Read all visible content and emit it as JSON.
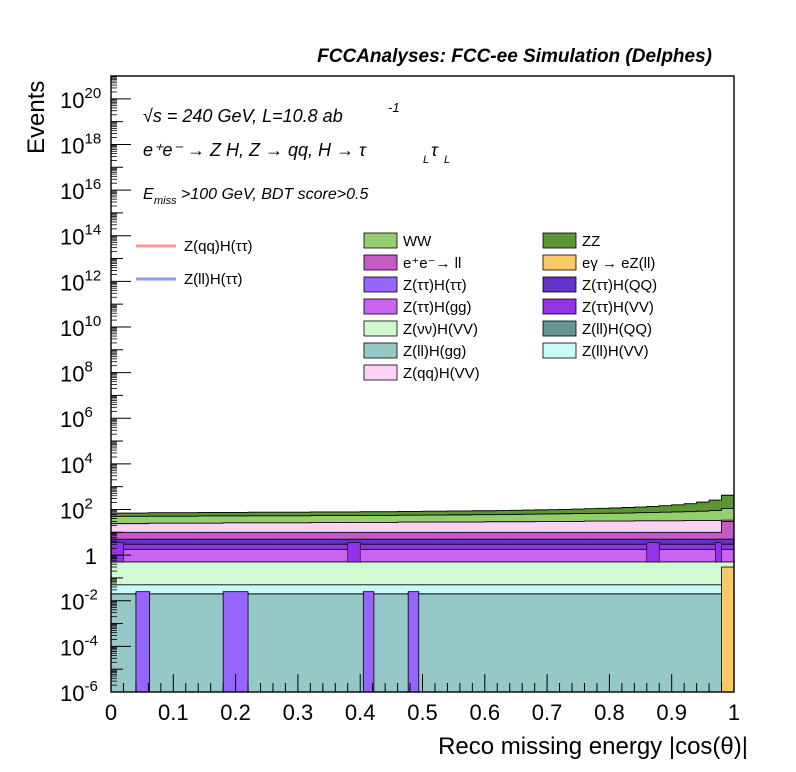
{
  "header": {
    "title": "FCCAnalyses: FCC-ee Simulation (Delphes)"
  },
  "annotations": {
    "line1_prefix": "√s",
    "line1_rest": " = 240 GeV, L=10.8 ab",
    "line1_sup": "-1",
    "line2": "e⁺e⁻ → Z H, Z → qq, H → τ",
    "line2_sub1": "L",
    "line2_tau": "τ",
    "line2_sub2": "L",
    "line3_E": "E",
    "line3_sub": "miss",
    "line3_rest": ">100 GeV, BDT score>0.5"
  },
  "chart_data": {
    "type": "area",
    "stacked": true,
    "title": "FCCAnalyses: FCC-ee Simulation (Delphes)",
    "xlabel": "Reco missing energy |cos(θ)|",
    "ylabel": "Events",
    "xlim": [
      0,
      1
    ],
    "ylim": [
      1e-06,
      1e+21
    ],
    "yscale": "log",
    "grid": false,
    "legend_position": "top",
    "x_ticks": [
      "0",
      "0.1",
      "0.2",
      "0.3",
      "0.4",
      "0.5",
      "0.6",
      "0.7",
      "0.8",
      "0.9",
      "1"
    ],
    "y_ticks": [
      {
        "base": "10",
        "exp": "-6",
        "value": 1e-06
      },
      {
        "base": "10",
        "exp": "-4",
        "value": 0.0001
      },
      {
        "base": "10",
        "exp": "-2",
        "value": 0.01
      },
      {
        "base": "1",
        "exp": "",
        "value": 1
      },
      {
        "base": "10",
        "exp": "2",
        "value": 100.0
      },
      {
        "base": "10",
        "exp": "4",
        "value": 10000.0
      },
      {
        "base": "10",
        "exp": "6",
        "value": 1000000.0
      },
      {
        "base": "10",
        "exp": "8",
        "value": 100000000.0
      },
      {
        "base": "10",
        "exp": "10",
        "value": 10000000000.0
      },
      {
        "base": "10",
        "exp": "12",
        "value": 1000000000000.0
      },
      {
        "base": "10",
        "exp": "14",
        "value": 100000000000000.0
      },
      {
        "base": "10",
        "exp": "16",
        "value": 1e+16
      },
      {
        "base": "10",
        "exp": "18",
        "value": 1e+18
      },
      {
        "base": "10",
        "exp": "20",
        "value": 1e+20
      }
    ],
    "bins": 50,
    "cumulative_layers": [
      {
        "name": "ZZ",
        "color": "#5a9632",
        "totals_approx": [
          70,
          70,
          70,
          72,
          72,
          72,
          72,
          74,
          74,
          74,
          74,
          76,
          76,
          76,
          76,
          76,
          78,
          78,
          78,
          78,
          80,
          80,
          80,
          82,
          82,
          84,
          84,
          86,
          86,
          88,
          88,
          90,
          92,
          94,
          96,
          98,
          100,
          104,
          108,
          112,
          116,
          122,
          128,
          136,
          146,
          160,
          180,
          210,
          260,
          420
        ]
      },
      {
        "name": "WW",
        "color": "#96cd6e",
        "totals_approx": [
          50,
          50,
          50,
          51,
          51,
          51,
          51,
          52,
          52,
          52,
          52,
          53,
          53,
          53,
          53,
          53,
          54,
          54,
          54,
          54,
          55,
          55,
          55,
          56,
          56,
          57,
          57,
          58,
          58,
          59,
          59,
          60,
          61,
          62,
          63,
          64,
          65,
          66,
          67,
          68,
          69,
          70,
          72,
          74,
          76,
          78,
          80,
          84,
          90,
          110
        ]
      },
      {
        "name": "Z(qq)H(VV)",
        "color": "#ffd2f5",
        "totals_approx": [
          24,
          24,
          24,
          25,
          25,
          25,
          25,
          25,
          25,
          26,
          26,
          26,
          26,
          26,
          26,
          26,
          27,
          27,
          27,
          27,
          27,
          27,
          27,
          28,
          28,
          28,
          28,
          28,
          28,
          28,
          29,
          29,
          29,
          29,
          30,
          30,
          30,
          30,
          31,
          31,
          31,
          31,
          32,
          32,
          32,
          32,
          33,
          33,
          33,
          34
        ]
      },
      {
        "name": "e⁺e⁻→ ll",
        "color": "#c85ac8",
        "totals_approx": [
          10,
          10,
          10,
          10,
          10,
          10,
          10,
          10,
          10,
          10,
          10,
          10,
          10,
          10,
          10,
          10,
          10,
          10,
          10,
          10,
          10,
          10,
          10,
          10,
          10,
          10,
          10,
          10,
          10,
          10,
          10,
          10,
          10,
          10,
          10,
          10,
          10,
          10,
          10,
          10,
          10,
          10,
          10,
          10,
          10,
          10,
          10,
          10,
          10,
          30
        ]
      },
      {
        "name": "Z(ττ)H(QQ)",
        "color": "#6432c8",
        "totals_approx": [
          5,
          5,
          5,
          5,
          5,
          5,
          5,
          5,
          5,
          5,
          5,
          5,
          5,
          5,
          5,
          5,
          5,
          5,
          5,
          5,
          5,
          5,
          5,
          5,
          5,
          5,
          5,
          5,
          5,
          5,
          5,
          5,
          5,
          5,
          5,
          5,
          5,
          5,
          5,
          5,
          5,
          5,
          5,
          5,
          5,
          5,
          5,
          5,
          5,
          5
        ]
      },
      {
        "name": "Z(ττ)H(VV)",
        "color": "#9632e6",
        "totals_approx": [
          3,
          3,
          3,
          3,
          3,
          3,
          3,
          3,
          3,
          3,
          3,
          3,
          3,
          3,
          3,
          3,
          3,
          3,
          3,
          3,
          3,
          3,
          3,
          3,
          3,
          3,
          3,
          3,
          3,
          3,
          3,
          3,
          3,
          3,
          3,
          3,
          3,
          3,
          3,
          3,
          3,
          3,
          3,
          3,
          3,
          3,
          3,
          3,
          3,
          3
        ]
      },
      {
        "name": "Z(ττ)H(gg)",
        "color": "#c864f0",
        "totals_approx": [
          1.8,
          1.8,
          1.8,
          1.8,
          1.8,
          1.8,
          1.8,
          1.8,
          1.8,
          1.8,
          1.8,
          1.8,
          1.8,
          1.8,
          1.8,
          1.8,
          1.8,
          1.8,
          1.8,
          1.8,
          1.8,
          1.8,
          1.8,
          1.8,
          1.8,
          1.8,
          1.8,
          1.8,
          1.8,
          1.8,
          1.8,
          1.8,
          1.8,
          1.8,
          1.8,
          1.8,
          1.8,
          1.8,
          1.8,
          1.8,
          1.8,
          1.8,
          1.8,
          1.8,
          1.8,
          1.8,
          1.8,
          1.8,
          1.8,
          1.8
        ]
      },
      {
        "name": "Z(νν)H(VV)",
        "color": "#d2fad2",
        "totals_approx": [
          0.5,
          0.5,
          0.5,
          0.5,
          0.5,
          0.5,
          0.5,
          0.5,
          0.5,
          0.5,
          0.5,
          0.5,
          0.5,
          0.5,
          0.5,
          0.5,
          0.5,
          0.5,
          0.5,
          0.5,
          0.5,
          0.5,
          0.5,
          0.5,
          0.5,
          0.5,
          0.5,
          0.5,
          0.5,
          0.5,
          0.5,
          0.5,
          0.5,
          0.5,
          0.5,
          0.5,
          0.5,
          0.5,
          0.5,
          0.5,
          0.5,
          0.5,
          0.5,
          0.5,
          0.5,
          0.5,
          0.5,
          0.5,
          0.5,
          0.5
        ]
      },
      {
        "name": "Z(ll)H(VV)",
        "color": "#c8fafa",
        "totals_approx": [
          0.05,
          0.05,
          0.05,
          0.05,
          0.05,
          0.05,
          0.05,
          0.05,
          0.05,
          0.05,
          0.05,
          0.05,
          0.05,
          0.05,
          0.05,
          0.05,
          0.05,
          0.05,
          0.05,
          0.05,
          0.05,
          0.05,
          0.05,
          0.05,
          0.05,
          0.05,
          0.05,
          0.05,
          0.05,
          0.05,
          0.05,
          0.05,
          0.05,
          0.05,
          0.05,
          0.05,
          0.05,
          0.05,
          0.05,
          0.05,
          0.05,
          0.05,
          0.05,
          0.05,
          0.05,
          0.05,
          0.05,
          0.05,
          0.05,
          0.05
        ]
      },
      {
        "name": "Z(ll)H(gg)",
        "color": "#96c8c8",
        "totals_approx": [
          0.02,
          0.02,
          0.02,
          0.02,
          0.02,
          0.02,
          0.02,
          0.02,
          0.02,
          0.02,
          0.02,
          0.02,
          0.02,
          0.02,
          0.02,
          0.02,
          0.02,
          0.02,
          0.02,
          0.02,
          0.02,
          0.02,
          0.02,
          0.02,
          0.02,
          0.02,
          0.02,
          0.02,
          0.02,
          0.02,
          0.02,
          0.02,
          0.02,
          0.02,
          0.02,
          0.02,
          0.02,
          0.02,
          0.02,
          0.02,
          0.02,
          0.02,
          0.02,
          0.02,
          0.02,
          0.02,
          0.02,
          0.02,
          0.02,
          0.02
        ]
      },
      {
        "name": "Z(ττ)H(ττ)",
        "color": "#9664ff",
        "note_values": "only bins 2, 9, 10, 20, 24 visible below Z(ll)H(gg)"
      },
      {
        "name": "eγ → eZ(ll)",
        "color": "#fac864",
        "note_values": "last bin only, ~0.3"
      }
    ],
    "legend": [
      {
        "name": "Z(qq)H(ττ)",
        "style": "line",
        "color": "#ff9696"
      },
      {
        "name": "Z(ll)H(ττ)",
        "style": "line",
        "color": "#9696ff"
      },
      {
        "name": "WW",
        "style": "fill",
        "color": "#96cd6e"
      },
      {
        "name": "ZZ",
        "style": "fill",
        "color": "#5a9632"
      },
      {
        "name": "e⁺e⁻→ ll",
        "style": "fill",
        "color": "#c85ac8"
      },
      {
        "name": "eγ → eZ(ll)",
        "style": "fill",
        "color": "#fac864"
      },
      {
        "name": "Z(ττ)H(ττ)",
        "style": "fill",
        "color": "#9664ff"
      },
      {
        "name": "Z(ττ)H(QQ)",
        "style": "fill",
        "color": "#6432c8"
      },
      {
        "name": "Z(ττ)H(gg)",
        "style": "fill",
        "color": "#c864f0"
      },
      {
        "name": "Z(ττ)H(VV)",
        "style": "fill",
        "color": "#9632e6"
      },
      {
        "name": "Z(νν)H(VV)",
        "style": "fill",
        "color": "#d2fad2"
      },
      {
        "name": "Z(ll)H(QQ)",
        "style": "fill",
        "color": "#649696"
      },
      {
        "name": "Z(ll)H(gg)",
        "style": "fill",
        "color": "#96c8c8"
      },
      {
        "name": "Z(ll)H(VV)",
        "style": "fill",
        "color": "#c8fafa"
      },
      {
        "name": "Z(qq)H(VV)",
        "style": "fill",
        "color": "#ffd2f5"
      }
    ]
  }
}
